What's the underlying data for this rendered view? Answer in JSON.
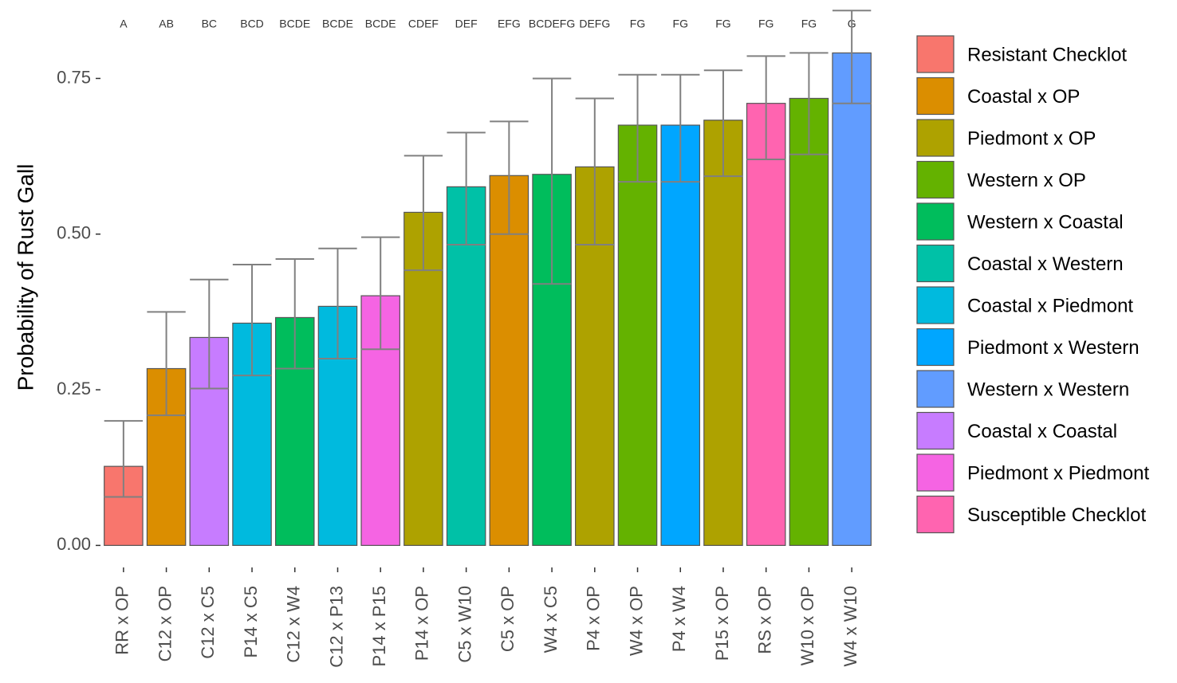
{
  "chart_data": {
    "type": "bar",
    "y_label": "Probability of Rust Gall",
    "categories": [
      "RR x OP",
      "C12 x OP",
      "C12 x C5",
      "P14 x C5",
      "C12 x W4",
      "C12 x P13",
      "P14 x P15",
      "P14 x OP",
      "C5 x W10",
      "C5 x OP",
      "W4 x C5",
      "P4 x OP",
      "W4 x OP",
      "P4 x W4",
      "P15 x OP",
      "RS x OP",
      "W10 x OP",
      "W4 x W10"
    ],
    "letters": [
      "A",
      "AB",
      "BC",
      "BCD",
      "BCDE",
      "BCDE",
      "BCDE",
      "CDEF",
      "DEF",
      "EFG",
      "BCDEFG",
      "DEFG",
      "FG",
      "FG",
      "FG",
      "FG",
      "FG",
      "G"
    ],
    "ylim": [
      -0.02,
      0.876
    ],
    "yticks": [
      {
        "value": 0,
        "label": "0.00"
      },
      {
        "value": 0.25,
        "label": "0.25"
      },
      {
        "value": 0.5,
        "label": "0.50"
      },
      {
        "value": 0.75,
        "label": "0.75"
      }
    ],
    "grid": false,
    "legend": "right",
    "series": [
      {
        "name": "Resistant Checklot",
        "color": "#F8766D",
        "values": [
          0.127,
          null,
          null,
          null,
          null,
          null,
          null,
          null,
          null,
          null,
          null,
          null,
          null,
          null,
          null,
          null,
          null,
          null
        ],
        "lower": [
          0.078,
          null,
          null,
          null,
          null,
          null,
          null,
          null,
          null,
          null,
          null,
          null,
          null,
          null,
          null,
          null,
          null,
          null
        ],
        "upper": [
          0.2,
          null,
          null,
          null,
          null,
          null,
          null,
          null,
          null,
          null,
          null,
          null,
          null,
          null,
          null,
          null,
          null,
          null
        ]
      },
      {
        "name": "Coastal x OP",
        "color": "#DB8E00",
        "values": [
          null,
          0.284,
          null,
          null,
          null,
          null,
          null,
          null,
          null,
          0.594,
          null,
          null,
          null,
          null,
          null,
          null,
          null,
          null
        ],
        "lower": [
          null,
          0.209,
          null,
          null,
          null,
          null,
          null,
          null,
          null,
          0.5,
          null,
          null,
          null,
          null,
          null,
          null,
          null,
          null
        ],
        "upper": [
          null,
          0.375,
          null,
          null,
          null,
          null,
          null,
          null,
          null,
          0.681,
          null,
          null,
          null,
          null,
          null,
          null,
          null,
          null
        ]
      },
      {
        "name": "Piedmont x OP",
        "color": "#AEA200",
        "values": [
          null,
          null,
          null,
          null,
          null,
          null,
          null,
          0.535,
          null,
          null,
          null,
          0.608,
          null,
          null,
          0.683,
          null,
          null,
          null
        ],
        "lower": [
          null,
          null,
          null,
          null,
          null,
          null,
          null,
          0.442,
          null,
          null,
          null,
          0.483,
          null,
          null,
          0.593,
          null,
          null,
          null
        ],
        "upper": [
          null,
          null,
          null,
          null,
          null,
          null,
          null,
          0.626,
          null,
          null,
          null,
          0.718,
          null,
          null,
          0.763,
          null,
          null,
          null
        ]
      },
      {
        "name": "Western x OP",
        "color": "#64B200",
        "values": [
          null,
          null,
          null,
          null,
          null,
          null,
          null,
          null,
          null,
          null,
          null,
          null,
          0.675,
          null,
          null,
          null,
          0.718,
          null
        ],
        "lower": [
          null,
          null,
          null,
          null,
          null,
          null,
          null,
          null,
          null,
          null,
          null,
          null,
          0.584,
          null,
          null,
          null,
          0.628,
          null
        ],
        "upper": [
          null,
          null,
          null,
          null,
          null,
          null,
          null,
          null,
          null,
          null,
          null,
          null,
          0.756,
          null,
          null,
          null,
          0.791,
          null
        ]
      },
      {
        "name": "Western x Coastal",
        "color": "#00BD5C",
        "values": [
          null,
          null,
          null,
          null,
          0.366,
          null,
          null,
          null,
          null,
          null,
          0.596,
          null,
          null,
          null,
          null,
          null,
          null,
          null
        ],
        "lower": [
          null,
          null,
          null,
          null,
          0.284,
          null,
          null,
          null,
          null,
          null,
          0.42,
          null,
          null,
          null,
          null,
          null,
          null,
          null
        ],
        "upper": [
          null,
          null,
          null,
          null,
          0.46,
          null,
          null,
          null,
          null,
          null,
          0.75,
          null,
          null,
          null,
          null,
          null,
          null,
          null
        ]
      },
      {
        "name": "Coastal x Western",
        "color": "#00C1A7",
        "values": [
          null,
          null,
          null,
          null,
          null,
          null,
          null,
          null,
          0.576,
          null,
          null,
          null,
          null,
          null,
          null,
          null,
          null,
          null
        ],
        "lower": [
          null,
          null,
          null,
          null,
          null,
          null,
          null,
          null,
          0.483,
          null,
          null,
          null,
          null,
          null,
          null,
          null,
          null,
          null
        ],
        "upper": [
          null,
          null,
          null,
          null,
          null,
          null,
          null,
          null,
          0.663,
          null,
          null,
          null,
          null,
          null,
          null,
          null,
          null,
          null
        ]
      },
      {
        "name": "Coastal x Piedmont",
        "color": "#00BADE",
        "values": [
          null,
          null,
          null,
          0.357,
          null,
          0.384,
          null,
          null,
          null,
          null,
          null,
          null,
          null,
          null,
          null,
          null,
          null,
          null
        ],
        "lower": [
          null,
          null,
          null,
          0.273,
          null,
          0.3,
          null,
          null,
          null,
          null,
          null,
          null,
          null,
          null,
          null,
          null,
          null,
          null
        ],
        "upper": [
          null,
          null,
          null,
          0.451,
          null,
          0.477,
          null,
          null,
          null,
          null,
          null,
          null,
          null,
          null,
          null,
          null,
          null,
          null
        ]
      },
      {
        "name": "Piedmont x Western",
        "color": "#00A6FF",
        "values": [
          null,
          null,
          null,
          null,
          null,
          null,
          null,
          null,
          null,
          null,
          null,
          null,
          null,
          0.675,
          null,
          null,
          null,
          null
        ],
        "lower": [
          null,
          null,
          null,
          null,
          null,
          null,
          null,
          null,
          null,
          null,
          null,
          null,
          null,
          0.584,
          null,
          null,
          null,
          null
        ],
        "upper": [
          null,
          null,
          null,
          null,
          null,
          null,
          null,
          null,
          null,
          null,
          null,
          null,
          null,
          0.756,
          null,
          null,
          null,
          null
        ]
      },
      {
        "name": "Western x Western",
        "color": "#619CFF",
        "values": [
          null,
          null,
          null,
          null,
          null,
          null,
          null,
          null,
          null,
          null,
          null,
          null,
          null,
          null,
          null,
          null,
          null,
          0.791
        ],
        "lower": [
          null,
          null,
          null,
          null,
          null,
          null,
          null,
          null,
          null,
          null,
          null,
          null,
          null,
          null,
          null,
          null,
          null,
          0.71
        ],
        "upper": [
          null,
          null,
          null,
          null,
          null,
          null,
          null,
          null,
          null,
          null,
          null,
          null,
          null,
          null,
          null,
          null,
          null,
          0.859
        ]
      },
      {
        "name": "Coastal x Coastal",
        "color": "#C77CFF",
        "values": [
          null,
          null,
          0.334,
          null,
          null,
          null,
          null,
          null,
          null,
          null,
          null,
          null,
          null,
          null,
          null,
          null,
          null,
          null
        ],
        "lower": [
          null,
          null,
          0.252,
          null,
          null,
          null,
          null,
          null,
          null,
          null,
          null,
          null,
          null,
          null,
          null,
          null,
          null,
          null
        ],
        "upper": [
          null,
          null,
          0.427,
          null,
          null,
          null,
          null,
          null,
          null,
          null,
          null,
          null,
          null,
          null,
          null,
          null,
          null,
          null
        ]
      },
      {
        "name": "Piedmont x Piedmont",
        "color": "#F564E3",
        "values": [
          null,
          null,
          null,
          null,
          null,
          null,
          0.401,
          null,
          null,
          null,
          null,
          null,
          null,
          null,
          null,
          null,
          null,
          null
        ],
        "lower": [
          null,
          null,
          null,
          null,
          null,
          null,
          0.315,
          null,
          null,
          null,
          null,
          null,
          null,
          null,
          null,
          null,
          null,
          null
        ],
        "upper": [
          null,
          null,
          null,
          null,
          null,
          null,
          0.495,
          null,
          null,
          null,
          null,
          null,
          null,
          null,
          null,
          null,
          null,
          null
        ]
      },
      {
        "name": "Susceptible Checklot",
        "color": "#FF64B0",
        "values": [
          null,
          null,
          null,
          null,
          null,
          null,
          null,
          null,
          null,
          null,
          null,
          null,
          null,
          null,
          null,
          0.71,
          null,
          null
        ],
        "lower": [
          null,
          null,
          null,
          null,
          null,
          null,
          null,
          null,
          null,
          null,
          null,
          null,
          null,
          null,
          null,
          0.62,
          null,
          null
        ],
        "upper": [
          null,
          null,
          null,
          null,
          null,
          null,
          null,
          null,
          null,
          null,
          null,
          null,
          null,
          null,
          null,
          0.786,
          null,
          null
        ]
      }
    ]
  }
}
